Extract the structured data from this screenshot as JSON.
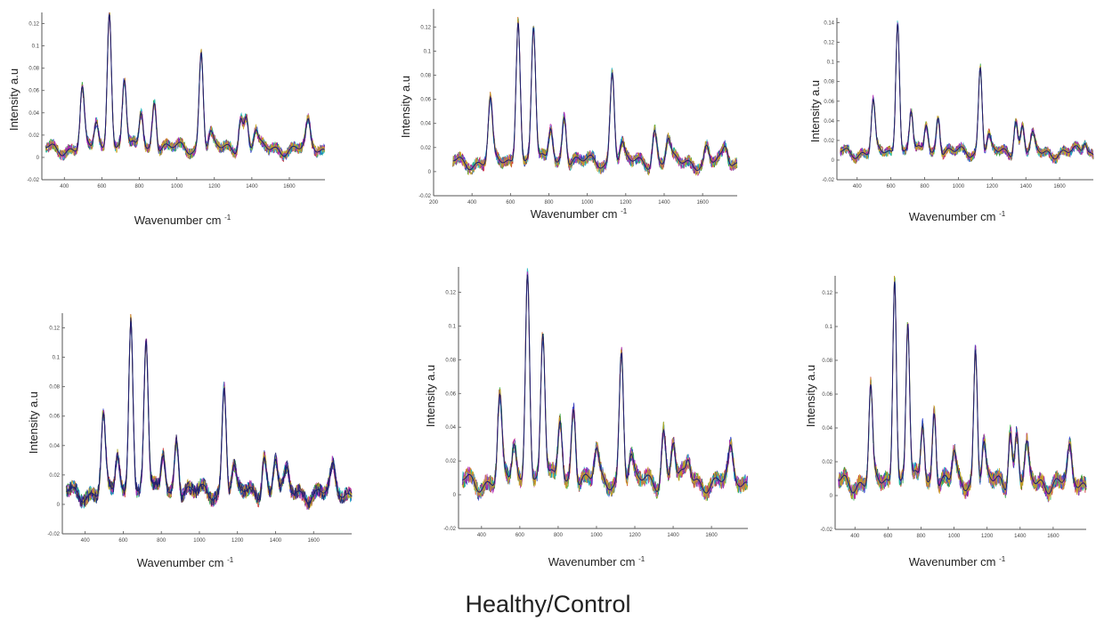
{
  "figure_caption": "Healthy/Control",
  "series_colors": [
    "#c81e1e",
    "#1fa52d",
    "#2236c8",
    "#1bb8c0",
    "#b51eb0",
    "#c9a21d",
    "#1e1e6e"
  ],
  "chart_data": [
    {
      "type": "line",
      "xlabel": "Wavenumber cm",
      "xlabel_sup": "-1",
      "ylabel": "Intensity a.u",
      "xlim": [
        280,
        1790
      ],
      "ylim": [
        -0.02,
        0.13
      ],
      "xticks": [
        400,
        600,
        800,
        1000,
        1200,
        1400,
        1600
      ],
      "xtick_labels": [
        "400",
        "600",
        "800",
        "1000",
        "1200",
        "1400",
        "1600"
      ],
      "yticks": [
        -0.02,
        0,
        0.02,
        0.04,
        0.06,
        0.08,
        0.1,
        0.12
      ],
      "ytick_labels": [
        "-0.02",
        "0",
        "0.02",
        "0.04",
        "0.06",
        "0.08",
        "0.1",
        "0.12"
      ],
      "n_series": 6,
      "peaks": [
        [
          495,
          0.052
        ],
        [
          570,
          0.024
        ],
        [
          640,
          0.128
        ],
        [
          720,
          0.062
        ],
        [
          810,
          0.034
        ],
        [
          880,
          0.046
        ],
        [
          1130,
          0.09
        ],
        [
          1180,
          0.012
        ],
        [
          1340,
          0.03
        ],
        [
          1370,
          0.028
        ],
        [
          1420,
          0.015
        ],
        [
          1700,
          0.02
        ]
      ]
    },
    {
      "type": "line",
      "xlabel": "Wavenumber cm",
      "xlabel_sup": "-1",
      "ylabel": "Intensity a.u",
      "xlim": [
        200,
        1780
      ],
      "ylim": [
        -0.02,
        0.135
      ],
      "xticks": [
        200,
        400,
        600,
        800,
        1000,
        1200,
        1400,
        1600
      ],
      "xtick_labels": [
        "200",
        "400",
        "600",
        "800",
        "1000",
        "1200",
        "1400",
        "1600"
      ],
      "yticks": [
        -0.02,
        0,
        0.02,
        0.04,
        0.06,
        0.08,
        0.1,
        0.12
      ],
      "ytick_labels": [
        "-0.02",
        "0",
        "0.02",
        "0.04",
        "0.06",
        "0.08",
        "0.1",
        "0.12"
      ],
      "n_series": 6,
      "peaks": [
        [
          495,
          0.05
        ],
        [
          640,
          0.123
        ],
        [
          720,
          0.112
        ],
        [
          810,
          0.03
        ],
        [
          880,
          0.042
        ],
        [
          1130,
          0.078
        ],
        [
          1180,
          0.013
        ],
        [
          1350,
          0.028
        ],
        [
          1420,
          0.018
        ],
        [
          1620,
          0.012
        ],
        [
          1720,
          0.01
        ]
      ]
    },
    {
      "type": "line",
      "xlabel": "Wavenumber cm",
      "xlabel_sup": "-1",
      "ylabel": "Intensity a.u",
      "xlim": [
        280,
        1800
      ],
      "ylim": [
        -0.02,
        0.145
      ],
      "xticks": [
        400,
        600,
        800,
        1000,
        1200,
        1400,
        1600
      ],
      "xtick_labels": [
        "400",
        "600",
        "800",
        "1000",
        "1200",
        "1400",
        "1600"
      ],
      "yticks": [
        -0.02,
        0,
        0.02,
        0.04,
        0.06,
        0.08,
        0.1,
        0.12,
        0.14
      ],
      "ytick_labels": [
        "-0.02",
        "0",
        "0.02",
        "0.04",
        "0.06",
        "0.08",
        "0.1",
        "0.12",
        "0.14"
      ],
      "n_series": 6,
      "peaks": [
        [
          495,
          0.05
        ],
        [
          640,
          0.138
        ],
        [
          720,
          0.042
        ],
        [
          810,
          0.03
        ],
        [
          880,
          0.04
        ],
        [
          1130,
          0.09
        ],
        [
          1180,
          0.015
        ],
        [
          1340,
          0.035
        ],
        [
          1380,
          0.028
        ],
        [
          1440,
          0.015
        ],
        [
          1750,
          0.012
        ]
      ]
    },
    {
      "type": "line",
      "xlabel": "Wavenumber cm",
      "xlabel_sup": "-1",
      "ylabel": "Intensity a.u",
      "xlim": [
        280,
        1800
      ],
      "ylim": [
        -0.02,
        0.13
      ],
      "xticks": [
        400,
        600,
        800,
        1000,
        1200,
        1400,
        1600
      ],
      "xtick_labels": [
        "400",
        "600",
        "800",
        "1000",
        "1200",
        "1400",
        "1600"
      ],
      "yticks": [
        -0.02,
        0,
        0.02,
        0.04,
        0.06,
        0.08,
        0.1,
        0.12
      ],
      "ytick_labels": [
        "-0.02",
        "0",
        "0.02",
        "0.04",
        "0.06",
        "0.08",
        "0.1",
        "0.12"
      ],
      "n_series": 7,
      "peaks": [
        [
          495,
          0.05
        ],
        [
          570,
          0.025
        ],
        [
          640,
          0.124
        ],
        [
          720,
          0.104
        ],
        [
          810,
          0.028
        ],
        [
          880,
          0.04
        ],
        [
          1130,
          0.075
        ],
        [
          1180,
          0.015
        ],
        [
          1340,
          0.028
        ],
        [
          1400,
          0.025
        ],
        [
          1460,
          0.012
        ],
        [
          1700,
          0.014
        ]
      ]
    },
    {
      "type": "line",
      "xlabel": "Wavenumber cm",
      "xlabel_sup": "-1",
      "ylabel": "Intensity a.u",
      "xlim": [
        280,
        1790
      ],
      "ylim": [
        -0.02,
        0.135
      ],
      "xticks": [
        400,
        600,
        800,
        1000,
        1200,
        1400,
        1600
      ],
      "xtick_labels": [
        "400",
        "600",
        "800",
        "1000",
        "1200",
        "1400",
        "1600"
      ],
      "yticks": [
        -0.02,
        0,
        0.02,
        0.04,
        0.06,
        0.08,
        0.1,
        0.12
      ],
      "ytick_labels": [
        "-0.02",
        "0",
        "0.02",
        "0.04",
        "0.06",
        "0.08",
        "0.1",
        "0.12"
      ],
      "n_series": 6,
      "peaks": [
        [
          495,
          0.048
        ],
        [
          570,
          0.022
        ],
        [
          640,
          0.13
        ],
        [
          720,
          0.088
        ],
        [
          810,
          0.038
        ],
        [
          880,
          0.048
        ],
        [
          1000,
          0.016
        ],
        [
          1130,
          0.08
        ],
        [
          1180,
          0.012
        ],
        [
          1350,
          0.032
        ],
        [
          1400,
          0.025
        ],
        [
          1480,
          0.012
        ],
        [
          1700,
          0.015
        ]
      ]
    },
    {
      "type": "line",
      "xlabel": "Wavenumber cm",
      "xlabel_sup": "-1",
      "ylabel": "Intensity a.u",
      "xlim": [
        280,
        1800
      ],
      "ylim": [
        -0.02,
        0.13
      ],
      "xticks": [
        400,
        600,
        800,
        1000,
        1200,
        1400,
        1600
      ],
      "xtick_labels": [
        "400",
        "600",
        "800",
        "1000",
        "1200",
        "1400",
        "1600"
      ],
      "yticks": [
        -0.02,
        0,
        0.02,
        0.04,
        0.06,
        0.08,
        0.1,
        0.12
      ],
      "ytick_labels": [
        "-0.02",
        "0",
        "0.02",
        "0.04",
        "0.06",
        "0.08",
        "0.1",
        "0.12"
      ],
      "n_series": 6,
      "peaks": [
        [
          495,
          0.054
        ],
        [
          640,
          0.126
        ],
        [
          720,
          0.094
        ],
        [
          810,
          0.036
        ],
        [
          880,
          0.046
        ],
        [
          1000,
          0.015
        ],
        [
          1130,
          0.082
        ],
        [
          1180,
          0.02
        ],
        [
          1340,
          0.033
        ],
        [
          1380,
          0.03
        ],
        [
          1440,
          0.018
        ],
        [
          1700,
          0.016
        ]
      ]
    }
  ]
}
